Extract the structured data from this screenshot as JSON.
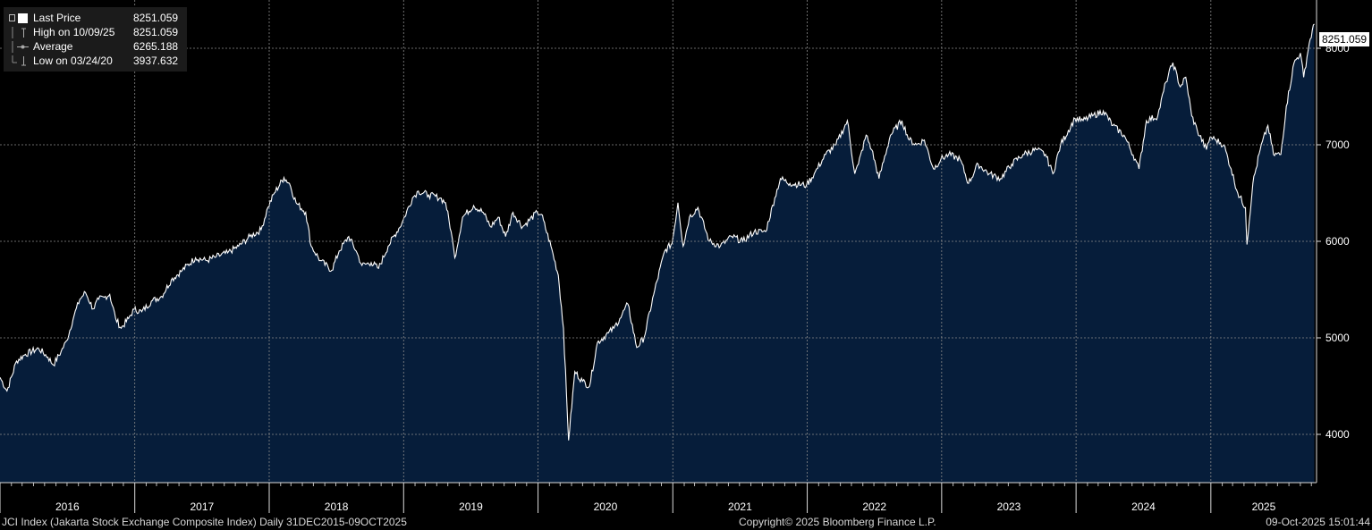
{
  "legend": {
    "last_price_label": "Last Price",
    "last_price_value": "8251.059",
    "high_label": "High on 10/09/25",
    "high_value": "8251.059",
    "average_label": "Average",
    "average_value": "6265.188",
    "low_label": "Low on 03/24/20",
    "low_value": "3937.632"
  },
  "last_price_tag": "8251.059",
  "footer": {
    "left": "JCI Index (Jakarta Stock Exchange Composite Index) Daily 31DEC2015-09OCT2025",
    "center": "Copyright© 2025 Bloomberg Finance L.P.",
    "right": "09-Oct-2025 15:01:44"
  },
  "colors": {
    "background": "#000000",
    "area_fill": "#061d3a",
    "line": "#ffffff",
    "grid": "#8a8a8a",
    "text": "#ffffff"
  },
  "chart_data": {
    "type": "area",
    "title": "",
    "xlabel": "",
    "ylabel": "",
    "x_ticks": [
      "2016",
      "2017",
      "2018",
      "2019",
      "2020",
      "2021",
      "2022",
      "2023",
      "2024",
      "2025"
    ],
    "y_ticks": [
      4000,
      5000,
      6000,
      7000,
      8000
    ],
    "ylim": [
      3500,
      8500
    ],
    "xlim": [
      "2016-01-01",
      "2025-10-15"
    ],
    "grid": true,
    "legend_position": "top-left",
    "series": [
      {
        "name": "Last Price",
        "points": [
          [
            "2016-01-01",
            4590
          ],
          [
            "2016-01-20",
            4450
          ],
          [
            "2016-02-15",
            4760
          ],
          [
            "2016-03-10",
            4830
          ],
          [
            "2016-04-15",
            4890
          ],
          [
            "2016-05-10",
            4800
          ],
          [
            "2016-05-25",
            4720
          ],
          [
            "2016-06-15",
            4860
          ],
          [
            "2016-06-30",
            4970
          ],
          [
            "2016-07-20",
            5230
          ],
          [
            "2016-08-05",
            5400
          ],
          [
            "2016-08-20",
            5470
          ],
          [
            "2016-09-10",
            5300
          ],
          [
            "2016-09-25",
            5400
          ],
          [
            "2016-10-10",
            5420
          ],
          [
            "2016-10-25",
            5450
          ],
          [
            "2016-11-10",
            5200
          ],
          [
            "2016-11-25",
            5100
          ],
          [
            "2016-12-15",
            5200
          ],
          [
            "2016-12-30",
            5296
          ],
          [
            "2017-01-20",
            5270
          ],
          [
            "2017-02-15",
            5380
          ],
          [
            "2017-03-15",
            5430
          ],
          [
            "2017-04-10",
            5600
          ],
          [
            "2017-05-10",
            5700
          ],
          [
            "2017-06-15",
            5830
          ],
          [
            "2017-07-15",
            5800
          ],
          [
            "2017-08-10",
            5840
          ],
          [
            "2017-09-10",
            5880
          ],
          [
            "2017-10-10",
            5950
          ],
          [
            "2017-11-10",
            6050
          ],
          [
            "2017-12-10",
            6120
          ],
          [
            "2017-12-29",
            6356
          ],
          [
            "2018-01-15",
            6500
          ],
          [
            "2018-02-10",
            6660
          ],
          [
            "2018-02-25",
            6600
          ],
          [
            "2018-03-15",
            6400
          ],
          [
            "2018-04-10",
            6300
          ],
          [
            "2018-04-25",
            5950
          ],
          [
            "2018-05-20",
            5800
          ],
          [
            "2018-06-20",
            5700
          ],
          [
            "2018-07-10",
            5900
          ],
          [
            "2018-08-05",
            6050
          ],
          [
            "2018-08-25",
            5900
          ],
          [
            "2018-09-10",
            5750
          ],
          [
            "2018-10-05",
            5780
          ],
          [
            "2018-10-25",
            5720
          ],
          [
            "2018-11-20",
            5950
          ],
          [
            "2018-12-28",
            6194
          ],
          [
            "2019-01-25",
            6450
          ],
          [
            "2019-02-10",
            6520
          ],
          [
            "2019-03-10",
            6480
          ],
          [
            "2019-04-10",
            6450
          ],
          [
            "2019-04-25",
            6400
          ],
          [
            "2019-05-10",
            6100
          ],
          [
            "2019-05-20",
            5830
          ],
          [
            "2019-06-10",
            6250
          ],
          [
            "2019-07-10",
            6370
          ],
          [
            "2019-08-05",
            6300
          ],
          [
            "2019-08-25",
            6150
          ],
          [
            "2019-09-15",
            6250
          ],
          [
            "2019-10-05",
            6050
          ],
          [
            "2019-10-25",
            6300
          ],
          [
            "2019-11-20",
            6150
          ],
          [
            "2019-12-30",
            6300
          ],
          [
            "2020-01-10",
            6280
          ],
          [
            "2020-02-05",
            5950
          ],
          [
            "2020-02-25",
            5650
          ],
          [
            "2020-03-10",
            5100
          ],
          [
            "2020-03-24",
            3938
          ],
          [
            "2020-04-10",
            4650
          ],
          [
            "2020-05-01",
            4550
          ],
          [
            "2020-05-20",
            4500
          ],
          [
            "2020-06-10",
            4950
          ],
          [
            "2020-07-10",
            5050
          ],
          [
            "2020-07-25",
            5100
          ],
          [
            "2020-08-10",
            5200
          ],
          [
            "2020-09-01",
            5350
          ],
          [
            "2020-09-25",
            4900
          ],
          [
            "2020-10-15",
            5000
          ],
          [
            "2020-11-10",
            5450
          ],
          [
            "2020-12-10",
            5900
          ],
          [
            "2020-12-30",
            5979
          ],
          [
            "2021-01-15",
            6400
          ],
          [
            "2021-01-29",
            5950
          ],
          [
            "2021-02-15",
            6250
          ],
          [
            "2021-03-10",
            6350
          ],
          [
            "2021-04-10",
            6000
          ],
          [
            "2021-05-10",
            5950
          ],
          [
            "2021-06-10",
            6050
          ],
          [
            "2021-07-10",
            6000
          ],
          [
            "2021-08-10",
            6100
          ],
          [
            "2021-09-10",
            6100
          ],
          [
            "2021-10-05",
            6450
          ],
          [
            "2021-10-20",
            6650
          ],
          [
            "2021-11-15",
            6600
          ],
          [
            "2021-12-30",
            6581
          ],
          [
            "2022-01-20",
            6700
          ],
          [
            "2022-02-20",
            6900
          ],
          [
            "2022-03-20",
            7000
          ],
          [
            "2022-04-20",
            7250
          ],
          [
            "2022-05-10",
            6700
          ],
          [
            "2022-05-20",
            6800
          ],
          [
            "2022-06-10",
            7100
          ],
          [
            "2022-06-25",
            6950
          ],
          [
            "2022-07-15",
            6650
          ],
          [
            "2022-08-15",
            7100
          ],
          [
            "2022-09-15",
            7250
          ],
          [
            "2022-10-05",
            7050
          ],
          [
            "2022-10-25",
            7000
          ],
          [
            "2022-11-15",
            7050
          ],
          [
            "2022-12-10",
            6750
          ],
          [
            "2022-12-30",
            6851
          ],
          [
            "2023-01-20",
            6900
          ],
          [
            "2023-02-20",
            6850
          ],
          [
            "2023-03-15",
            6600
          ],
          [
            "2023-04-10",
            6800
          ],
          [
            "2023-05-10",
            6700
          ],
          [
            "2023-06-10",
            6650
          ],
          [
            "2023-07-10",
            6800
          ],
          [
            "2023-08-10",
            6900
          ],
          [
            "2023-09-15",
            6950
          ],
          [
            "2023-10-10",
            6900
          ],
          [
            "2023-10-30",
            6700
          ],
          [
            "2023-11-20",
            7000
          ],
          [
            "2023-12-29",
            7273
          ],
          [
            "2024-01-20",
            7250
          ],
          [
            "2024-02-15",
            7300
          ],
          [
            "2024-03-15",
            7350
          ],
          [
            "2024-04-10",
            7200
          ],
          [
            "2024-05-10",
            7100
          ],
          [
            "2024-06-10",
            6850
          ],
          [
            "2024-06-20",
            6750
          ],
          [
            "2024-07-10",
            7250
          ],
          [
            "2024-08-10",
            7300
          ],
          [
            "2024-09-01",
            7650
          ],
          [
            "2024-09-20",
            7850
          ],
          [
            "2024-10-10",
            7600
          ],
          [
            "2024-10-25",
            7700
          ],
          [
            "2024-11-10",
            7300
          ],
          [
            "2024-11-25",
            7150
          ],
          [
            "2024-12-20",
            6950
          ],
          [
            "2024-12-30",
            7080
          ],
          [
            "2025-01-15",
            7050
          ],
          [
            "2025-02-05",
            7000
          ],
          [
            "2025-02-25",
            6750
          ],
          [
            "2025-03-15",
            6500
          ],
          [
            "2025-04-05",
            6350
          ],
          [
            "2025-04-09",
            5967
          ],
          [
            "2025-04-25",
            6600
          ],
          [
            "2025-05-15",
            6950
          ],
          [
            "2025-06-05",
            7200
          ],
          [
            "2025-06-20",
            6900
          ],
          [
            "2025-07-10",
            6900
          ],
          [
            "2025-07-25",
            7400
          ],
          [
            "2025-08-15",
            7850
          ],
          [
            "2025-09-01",
            7950
          ],
          [
            "2025-09-10",
            7700
          ],
          [
            "2025-09-25",
            8050
          ],
          [
            "2025-10-09",
            8251
          ]
        ]
      }
    ],
    "reference_values": {
      "last": 8251.059,
      "high": 8251.059,
      "average": 6265.188,
      "low": 3937.632
    }
  }
}
